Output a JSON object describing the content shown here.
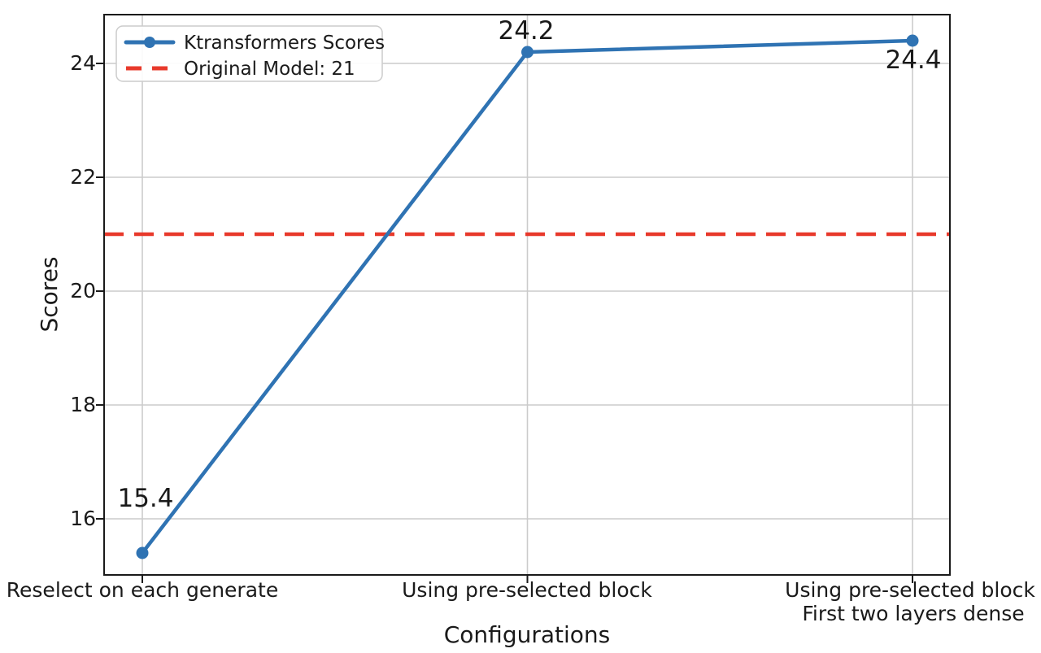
{
  "colors": {
    "series": "#2f73b3",
    "reference": "#e8392b",
    "grid": "#cbcbcb",
    "spine": "#1a1a1a",
    "text": "#1a1a1a",
    "legend_border": "#cccccc",
    "legend_bg": "#ffffff"
  },
  "chart_data": {
    "type": "line",
    "title": "",
    "xlabel": "Configurations",
    "ylabel": "Scores",
    "categories": [
      "Reselect on each generate",
      "Using pre-selected block",
      "Using pre-selected block\nFirst two layers dense"
    ],
    "xtick_lines": [
      [
        "Reselect on each generate"
      ],
      [
        "Using pre-selected block"
      ],
      [
        "Using pre-selected block",
        "First two layers dense"
      ]
    ],
    "yticks": [
      16,
      18,
      20,
      22,
      24
    ],
    "ylim": [
      14.95,
      24.86
    ],
    "grid": true,
    "legend_position": "upper left",
    "series": [
      {
        "name": "Ktransformers Scores",
        "values": [
          15.4,
          24.2,
          24.4
        ],
        "marker": "circle",
        "style": "solid"
      }
    ],
    "reference_line": {
      "label": "Original Model: 21",
      "value": 21,
      "style": "dashed"
    },
    "point_labels": [
      "15.4",
      "24.2",
      "24.4"
    ]
  }
}
